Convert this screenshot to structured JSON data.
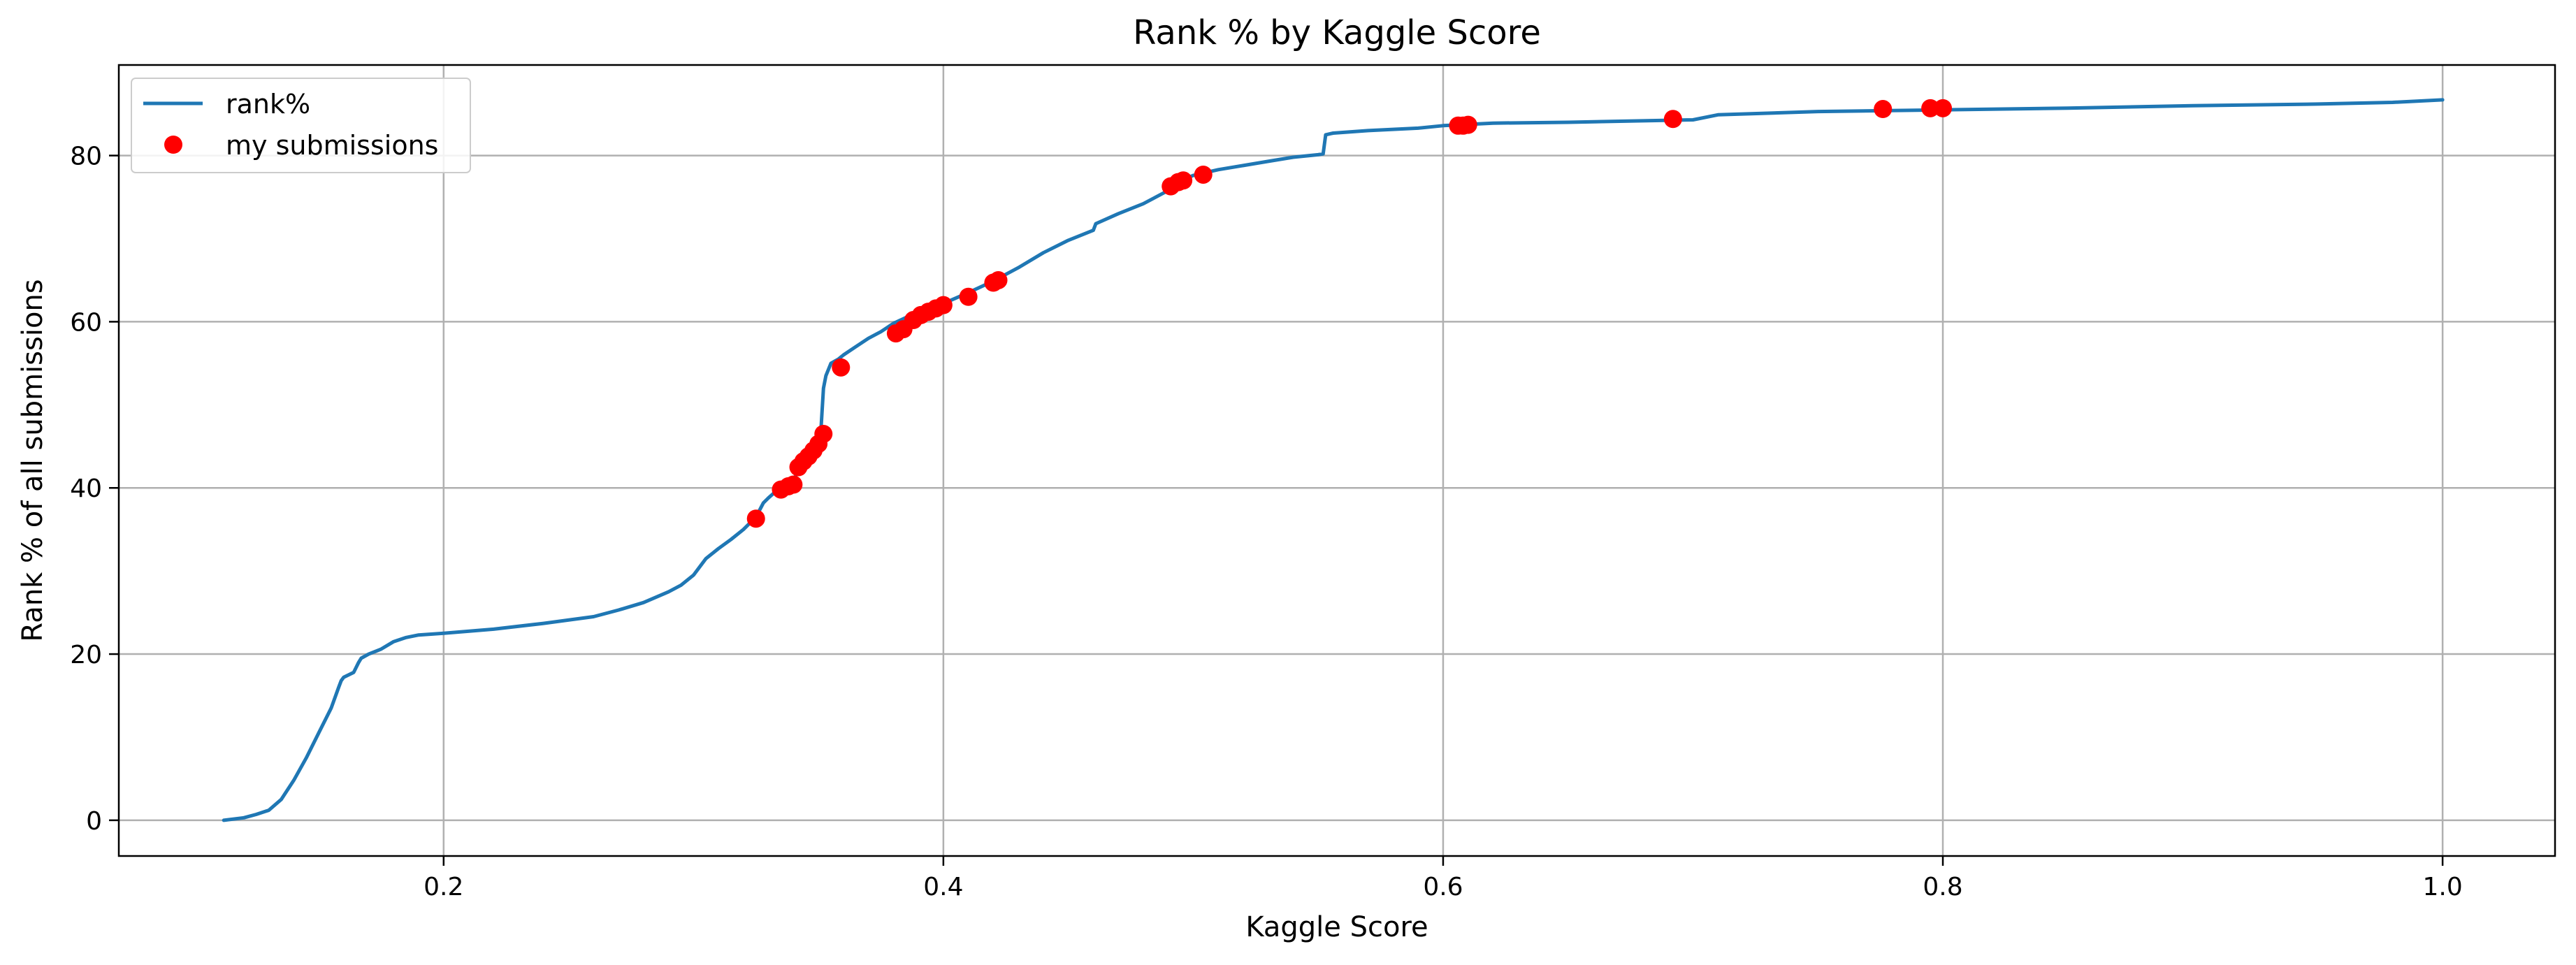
{
  "chart_data": {
    "type": "line",
    "title": "Rank % by Kaggle Score",
    "xlabel": "Kaggle Score",
    "ylabel": "Rank % of all submissions",
    "xlim": [
      0.07,
      1.045
    ],
    "ylim": [
      -4.3,
      90.9
    ],
    "xticks": [
      0.2,
      0.4,
      0.6,
      0.8,
      1.0
    ],
    "xtick_labels": [
      "0.2",
      "0.4",
      "0.6",
      "0.8",
      "1.0"
    ],
    "yticks": [
      0,
      20,
      40,
      60,
      80
    ],
    "ytick_labels": [
      "0",
      "20",
      "40",
      "60",
      "80"
    ],
    "grid": true,
    "legend_placement": "top-left",
    "legend": [
      "rank%",
      "my submissions"
    ],
    "series": [
      {
        "name": "rank%",
        "kind": "line",
        "color": "#1f77b4",
        "x": [
          0.112,
          0.12,
          0.125,
          0.13,
          0.135,
          0.14,
          0.145,
          0.15,
          0.155,
          0.158,
          0.159,
          0.16,
          0.164,
          0.166,
          0.167,
          0.17,
          0.175,
          0.18,
          0.185,
          0.19,
          0.2,
          0.22,
          0.24,
          0.26,
          0.27,
          0.28,
          0.29,
          0.295,
          0.3,
          0.305,
          0.31,
          0.315,
          0.32,
          0.325,
          0.328,
          0.33,
          0.333,
          0.336,
          0.34,
          0.343,
          0.346,
          0.349,
          0.351,
          0.352,
          0.353,
          0.355,
          0.358,
          0.36,
          0.365,
          0.37,
          0.375,
          0.38,
          0.385,
          0.39,
          0.395,
          0.4,
          0.41,
          0.42,
          0.43,
          0.44,
          0.45,
          0.46,
          0.461,
          0.47,
          0.48,
          0.49,
          0.495,
          0.5,
          0.51,
          0.52,
          0.53,
          0.54,
          0.55,
          0.552,
          0.553,
          0.556,
          0.57,
          0.59,
          0.6,
          0.62,
          0.65,
          0.7,
          0.71,
          0.75,
          0.8,
          0.85,
          0.9,
          0.95,
          0.98,
          1.0
        ],
        "y": [
          0,
          0.3,
          0.7,
          1.2,
          2.5,
          4.8,
          7.5,
          10.5,
          13.5,
          16.0,
          16.8,
          17.2,
          17.8,
          19.0,
          19.5,
          20.0,
          20.6,
          21.5,
          22.0,
          22.3,
          22.5,
          23.0,
          23.7,
          24.5,
          25.3,
          26.2,
          27.5,
          28.3,
          29.5,
          31.5,
          32.7,
          33.8,
          35.0,
          36.5,
          38.2,
          38.8,
          39.6,
          40.3,
          41.0,
          42.5,
          44.0,
          45.5,
          47.0,
          52.0,
          53.5,
          55.0,
          55.5,
          56.0,
          57.0,
          58.0,
          58.8,
          59.8,
          60.5,
          61.3,
          61.8,
          62.2,
          63.5,
          64.9,
          66.5,
          68.3,
          69.8,
          71.0,
          71.8,
          73.0,
          74.2,
          75.8,
          77.0,
          77.6,
          78.3,
          78.8,
          79.3,
          79.8,
          80.1,
          80.2,
          82.5,
          82.7,
          83.0,
          83.3,
          83.6,
          83.9,
          84.0,
          84.3,
          84.9,
          85.3,
          85.5,
          85.7,
          86.0,
          86.2,
          86.4,
          86.7
        ]
      },
      {
        "name": "my submissions",
        "kind": "scatter",
        "color": "#ff0000",
        "x": [
          0.325,
          0.335,
          0.338,
          0.34,
          0.342,
          0.344,
          0.346,
          0.348,
          0.35,
          0.352,
          0.359,
          0.381,
          0.384,
          0.388,
          0.391,
          0.394,
          0.397,
          0.4,
          0.41,
          0.42,
          0.422,
          0.491,
          0.494,
          0.496,
          0.504,
          0.606,
          0.608,
          0.61,
          0.692,
          0.776,
          0.795,
          0.8
        ],
        "y": [
          36.3,
          39.8,
          40.2,
          40.4,
          42.5,
          43.2,
          43.8,
          44.5,
          45.3,
          46.5,
          54.5,
          58.6,
          59.1,
          60.2,
          60.8,
          61.2,
          61.6,
          62.0,
          63.0,
          64.7,
          65.0,
          76.3,
          76.8,
          77.0,
          77.7,
          83.6,
          83.6,
          83.7,
          84.4,
          85.6,
          85.7,
          85.7
        ]
      }
    ]
  }
}
